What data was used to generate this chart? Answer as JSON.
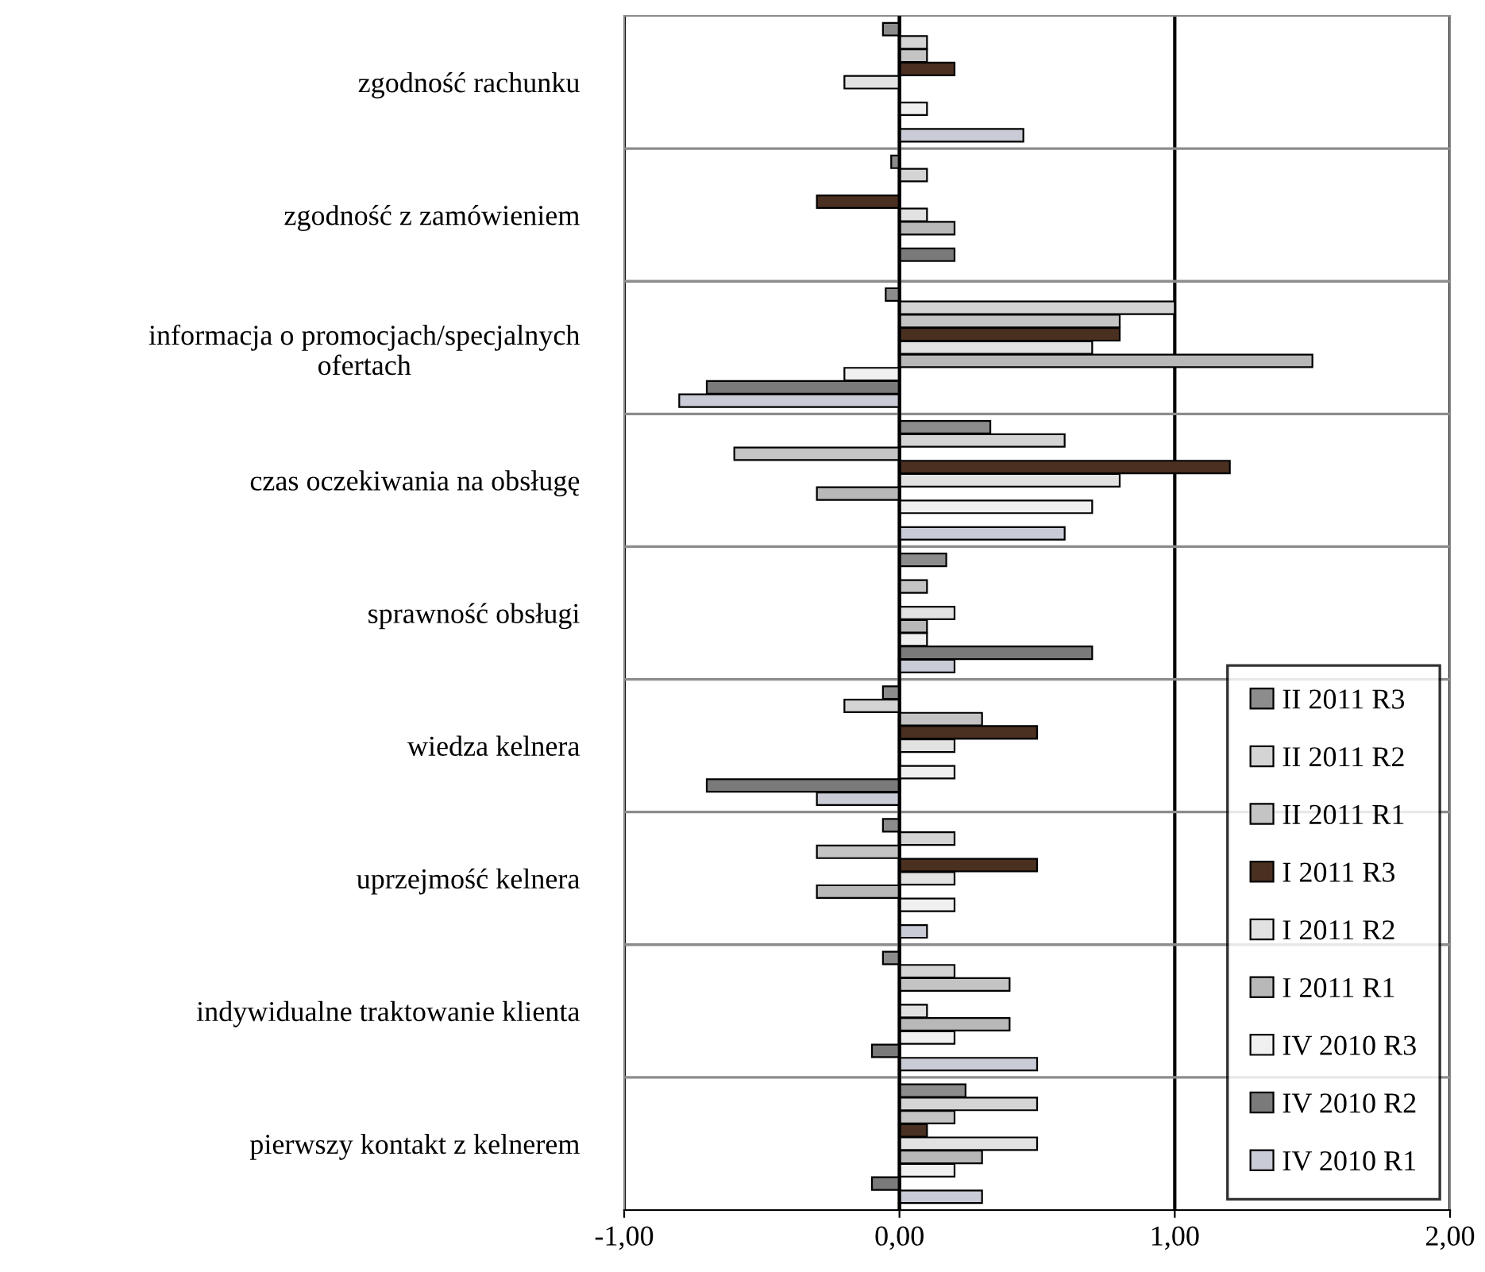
{
  "chart_data": {
    "type": "bar",
    "orientation": "horizontal",
    "categories": [
      "zgodność rachunku",
      "zgodność z zamówieniem",
      "informacja o promocjach/specjalnych\nofertach",
      "czas oczekiwania na obsługę",
      "sprawność obsługi",
      "wiedza kelnera",
      "uprzejmość kelnera",
      "indywidualne traktowanie klienta",
      "pierwszy kontakt z kelnerem"
    ],
    "series": [
      {
        "name": "II 2011 R3",
        "color": "#8c8c8c",
        "values": [
          -0.06,
          -0.03,
          -0.05,
          0.33,
          0.17,
          -0.06,
          -0.06,
          -0.06,
          0.24
        ]
      },
      {
        "name": "II 2011 R2",
        "color": "#d4d4d4",
        "values": [
          0.1,
          0.1,
          1.0,
          0.6,
          null,
          -0.2,
          0.2,
          0.2,
          0.5
        ]
      },
      {
        "name": "II 2011 R1",
        "color": "#c4c4c4",
        "values": [
          0.1,
          null,
          0.8,
          -0.6,
          0.1,
          0.3,
          -0.3,
          0.4,
          0.2
        ]
      },
      {
        "name": "I 2011 R3",
        "color": "#4a3020",
        "values": [
          0.2,
          -0.3,
          0.8,
          1.2,
          null,
          0.5,
          0.5,
          null,
          0.1
        ]
      },
      {
        "name": "I 2011 R2",
        "color": "#e2e2e2",
        "values": [
          -0.2,
          0.1,
          0.7,
          0.8,
          0.2,
          0.2,
          0.2,
          0.1,
          0.5
        ]
      },
      {
        "name": "I 2011 R1",
        "color": "#b8b8b8",
        "values": [
          null,
          0.2,
          1.5,
          -0.3,
          0.1,
          null,
          -0.3,
          0.4,
          0.3
        ]
      },
      {
        "name": "IV 2010 R3",
        "color": "#f0f0f0",
        "values": [
          0.1,
          null,
          -0.2,
          0.7,
          0.1,
          0.2,
          0.2,
          0.2,
          0.2
        ]
      },
      {
        "name": "IV 2010 R2",
        "color": "#7a7a7a",
        "values": [
          null,
          0.2,
          -0.7,
          null,
          0.7,
          -0.7,
          null,
          -0.1,
          -0.1
        ]
      },
      {
        "name": "IV 2010 R1",
        "color": "#c9ccd6",
        "values": [
          0.45,
          null,
          -0.8,
          0.6,
          0.2,
          -0.3,
          0.1,
          0.5,
          0.3
        ]
      }
    ],
    "xlim": [
      -1,
      2
    ],
    "xticks": [
      {
        "value": -1,
        "label": "-1,00"
      },
      {
        "value": 0,
        "label": "0,00"
      },
      {
        "value": 1,
        "label": "1,00"
      },
      {
        "value": 2,
        "label": "2,00"
      }
    ],
    "grid": "x",
    "legend": "bottom right"
  }
}
